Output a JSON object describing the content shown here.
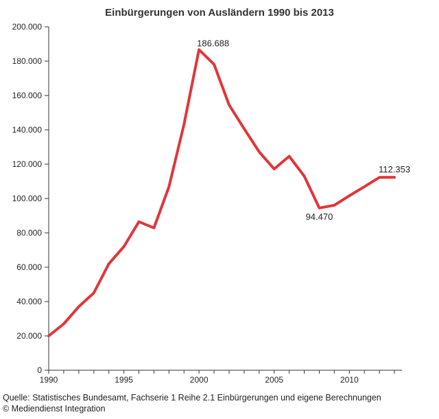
{
  "chart_data": {
    "type": "line",
    "title": "Einbürgerungen von Ausländern 1990 bis 2013",
    "xlabel": "",
    "ylabel": "",
    "xlim": [
      1990,
      2013.5
    ],
    "ylim": [
      0,
      200000
    ],
    "x_ticks": [
      "1990",
      "1995",
      "2000",
      "2005",
      "2010"
    ],
    "y_ticks": [
      "0",
      "20.000",
      "40.000",
      "60.000",
      "80.000",
      "100.000",
      "120.000",
      "140.000",
      "160.000",
      "180.000",
      "200.000"
    ],
    "series": [
      {
        "color": "#e0363a",
        "x": [
          1990,
          1991,
          1992,
          1993,
          1994,
          1995,
          1996,
          1997,
          1998,
          1999,
          2000,
          2001,
          2002,
          2003,
          2004,
          2005,
          2006,
          2007,
          2008,
          2009,
          2010,
          2011,
          2012,
          2013
        ],
        "y": [
          20000,
          27000,
          37000,
          45000,
          62000,
          72000,
          86500,
          82900,
          106800,
          143100,
          186688,
          178100,
          154500,
          140700,
          127200,
          117200,
          124600,
          113000,
          94470,
          96100,
          101600,
          106900,
          112300,
          112353
        ]
      }
    ],
    "annotations": [
      {
        "label": "186.688",
        "x": 2000,
        "y": 186688
      },
      {
        "label": "94.470",
        "x": 2008,
        "y": 94470
      },
      {
        "label": "112.353",
        "x": 2013,
        "y": 112353
      }
    ],
    "grid": false
  },
  "source": {
    "line1": "Quelle: Statistisches Bundesamt, Fachserie 1 Reihe 2.1 Einbürgerungen und eigene Berechnungen",
    "line2": "© Mediendienst Integration"
  }
}
